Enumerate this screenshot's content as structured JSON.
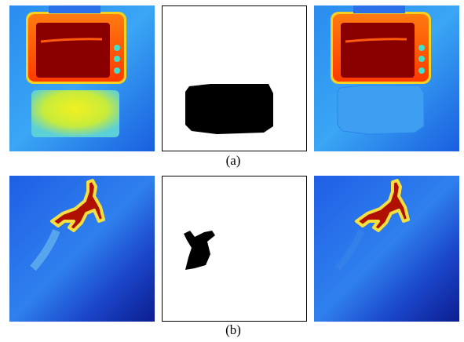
{
  "figure": {
    "rows": [
      {
        "caption": "(a)"
      },
      {
        "caption": "(b)"
      }
    ]
  }
}
